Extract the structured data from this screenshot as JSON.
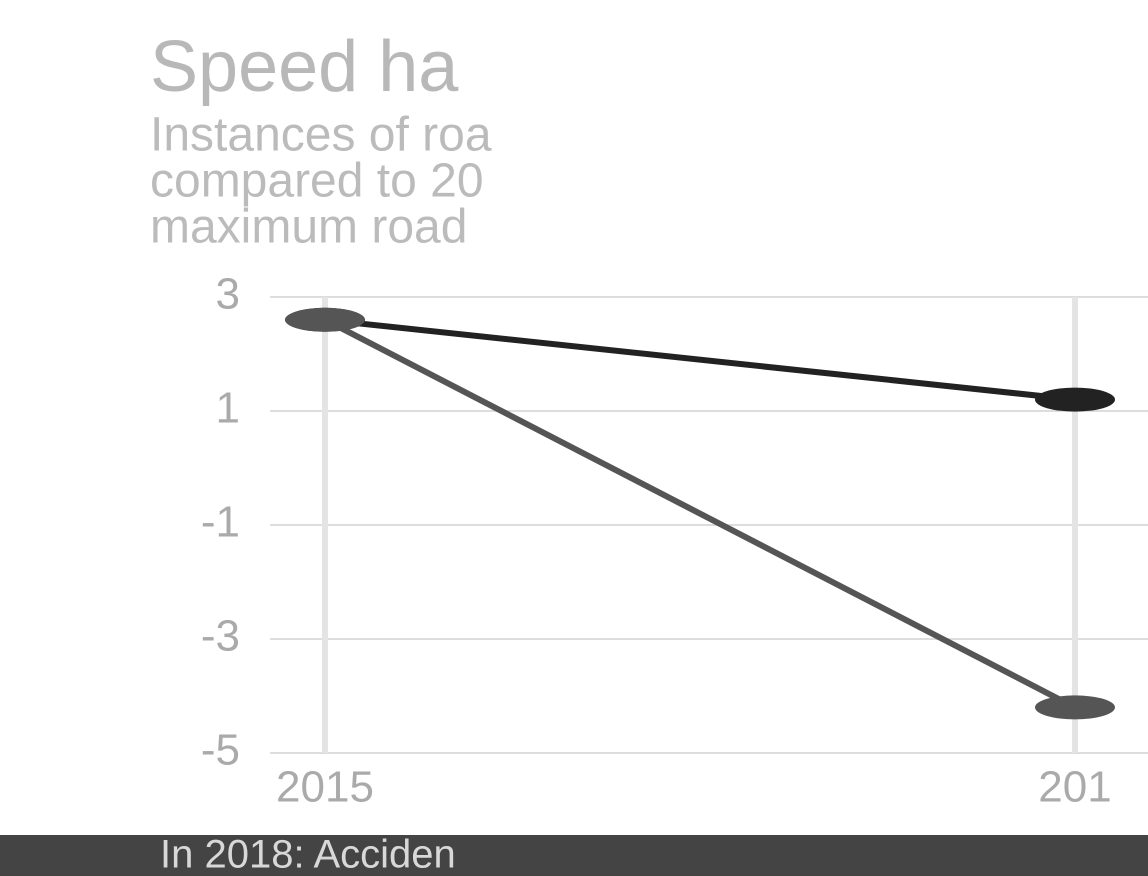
{
  "chart_data": {
    "type": "line",
    "title": "Speed ha",
    "subtitle": [
      "Instances of roa",
      "compared to 20",
      "maximum road"
    ],
    "footer": "In 2018: Acciden",
    "categories": [
      "2015",
      "201"
    ],
    "series": [
      {
        "color": "#222222",
        "values": [
          2.6,
          1.2
        ]
      },
      {
        "color": "#555555",
        "values": [
          2.6,
          -4.2
        ]
      }
    ],
    "ylim": [
      -5,
      3
    ],
    "yticks": [
      3,
      1,
      -1,
      -3,
      -5
    ],
    "grid": true
  }
}
